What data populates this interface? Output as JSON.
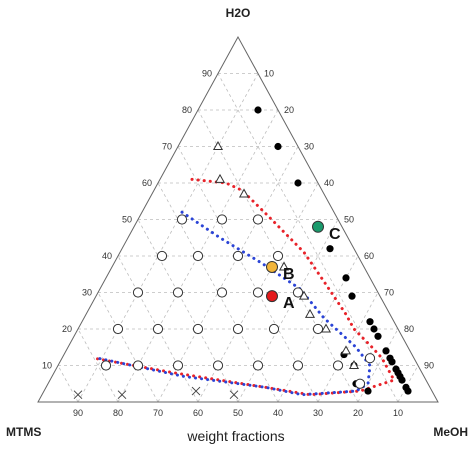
{
  "chart_data": {
    "type": "scatter",
    "subtype": "ternary",
    "axes": {
      "top": "H2O",
      "left": "MTMS",
      "right": "MeOH"
    },
    "xlabel": "weight fractions",
    "ticks": [
      "10",
      "20",
      "30",
      "40",
      "50",
      "60",
      "70",
      "80",
      "90"
    ],
    "grid": true,
    "series": [
      {
        "marker": "filled-circle",
        "points": [
          {
            "H2O": 80,
            "MeOH": 15
          },
          {
            "H2O": 70,
            "MeOH": 25
          },
          {
            "H2O": 60,
            "MeOH": 35
          },
          {
            "H2O": 42,
            "MeOH": 52
          },
          {
            "H2O": 34,
            "MeOH": 60
          },
          {
            "H2O": 29,
            "MeOH": 64
          },
          {
            "H2O": 22,
            "MeOH": 72
          },
          {
            "H2O": 20,
            "MeOH": 74
          },
          {
            "H2O": 18,
            "MeOH": 76
          },
          {
            "H2O": 14,
            "MeOH": 80
          },
          {
            "H2O": 12,
            "MeOH": 82
          },
          {
            "H2O": 11,
            "MeOH": 83
          },
          {
            "H2O": 9,
            "MeOH": 85
          },
          {
            "H2O": 8,
            "MeOH": 86
          },
          {
            "H2O": 7,
            "MeOH": 87
          },
          {
            "H2O": 6,
            "MeOH": 88
          },
          {
            "H2O": 4,
            "MeOH": 90
          },
          {
            "H2O": 3,
            "MeOH": 91
          },
          {
            "H2O": 3,
            "MeOH": 81
          },
          {
            "H2O": 5,
            "MeOH": 77
          },
          {
            "H2O": 10,
            "MeOH": 74
          },
          {
            "H2O": 13,
            "MeOH": 70
          }
        ]
      },
      {
        "marker": "open-triangle",
        "points": [
          {
            "H2O": 70,
            "MeOH": 10
          },
          {
            "H2O": 61,
            "MeOH": 15
          },
          {
            "H2O": 57,
            "MeOH": 23
          },
          {
            "H2O": 37,
            "MeOH": 43
          },
          {
            "H2O": 29,
            "MeOH": 52
          },
          {
            "H2O": 24,
            "MeOH": 56
          },
          {
            "H2O": 20,
            "MeOH": 62
          },
          {
            "H2O": 14,
            "MeOH": 70
          },
          {
            "H2O": 10,
            "MeOH": 74
          }
        ]
      },
      {
        "marker": "open-circle",
        "points": [
          {
            "H2O": 50,
            "MeOH": 11
          },
          {
            "H2O": 50,
            "MeOH": 21
          },
          {
            "H2O": 50,
            "MeOH": 30
          },
          {
            "H2O": 40,
            "MeOH": 11
          },
          {
            "H2O": 40,
            "MeOH": 20
          },
          {
            "H2O": 40,
            "MeOH": 30
          },
          {
            "H2O": 40,
            "MeOH": 40
          },
          {
            "H2O": 30,
            "MeOH": 10
          },
          {
            "H2O": 30,
            "MeOH": 20
          },
          {
            "H2O": 30,
            "MeOH": 31
          },
          {
            "H2O": 30,
            "MeOH": 40
          },
          {
            "H2O": 30,
            "MeOH": 50
          },
          {
            "H2O": 20,
            "MeOH": 10
          },
          {
            "H2O": 20,
            "MeOH": 20
          },
          {
            "H2O": 20,
            "MeOH": 30
          },
          {
            "H2O": 20,
            "MeOH": 40
          },
          {
            "H2O": 20,
            "MeOH": 49
          },
          {
            "H2O": 10,
            "MeOH": 12
          },
          {
            "H2O": 10,
            "MeOH": 20
          },
          {
            "H2O": 10,
            "MeOH": 30
          },
          {
            "H2O": 10,
            "MeOH": 40
          },
          {
            "H2O": 10,
            "MeOH": 50
          },
          {
            "H2O": 10,
            "MeOH": 60
          },
          {
            "H2O": 10,
            "MeOH": 70
          },
          {
            "H2O": 20,
            "MeOH": 60
          },
          {
            "H2O": 12,
            "MeOH": 77
          },
          {
            "H2O": 5,
            "MeOH": 78
          }
        ]
      },
      {
        "marker": "x",
        "points": [
          {
            "H2O": 2,
            "MeOH": 9
          },
          {
            "H2O": 2,
            "MeOH": 20
          },
          {
            "H2O": 2,
            "MeOH": 48
          },
          {
            "H2O": 3,
            "MeOH": 38
          }
        ]
      }
    ],
    "highlighted": [
      {
        "label": "A",
        "color": "#e41a1c",
        "H2O": 29,
        "MeOH": 44
      },
      {
        "label": "B",
        "color": "#f2b53a",
        "H2O": 37,
        "MeOH": 40
      },
      {
        "label": "C",
        "color": "#1a9a6c",
        "H2O": 48,
        "MeOH": 46
      }
    ],
    "curves": [
      {
        "color": "#e8232a",
        "style": "dotted",
        "points": [
          {
            "H2O": 61,
            "MeOH": 8
          },
          {
            "H2O": 60,
            "MeOH": 17
          },
          {
            "H2O": 58,
            "MeOH": 22
          },
          {
            "H2O": 51,
            "MeOH": 32
          },
          {
            "H2O": 41,
            "MeOH": 46
          },
          {
            "H2O": 33,
            "MeOH": 55
          },
          {
            "H2O": 24,
            "MeOH": 65
          },
          {
            "H2O": 20,
            "MeOH": 69
          },
          {
            "H2O": 15,
            "MeOH": 76
          },
          {
            "H2O": 12,
            "MeOH": 80
          },
          {
            "H2O": 6,
            "MeOH": 86
          },
          {
            "H2O": 3,
            "MeOH": 79
          },
          {
            "H2O": 2,
            "MeOH": 67
          },
          {
            "H2O": 4,
            "MeOH": 55
          },
          {
            "H2O": 8,
            "MeOH": 30
          },
          {
            "H2O": 12,
            "MeOH": 8
          }
        ]
      },
      {
        "color": "#2b44d6",
        "style": "dotted",
        "points": [
          {
            "H2O": 52,
            "MeOH": 10
          },
          {
            "H2O": 45,
            "MeOH": 23
          },
          {
            "H2O": 38,
            "MeOH": 37
          },
          {
            "H2O": 31,
            "MeOH": 50
          },
          {
            "H2O": 23,
            "MeOH": 60
          },
          {
            "H2O": 15,
            "MeOH": 72
          },
          {
            "H2O": 10,
            "MeOH": 78
          },
          {
            "H2O": 5,
            "MeOH": 80
          },
          {
            "H2O": 3,
            "MeOH": 78
          },
          {
            "H2O": 2,
            "MeOH": 65
          },
          {
            "H2O": 4,
            "MeOH": 55
          },
          {
            "H2O": 7,
            "MeOH": 33
          },
          {
            "H2O": 12,
            "MeOH": 9
          }
        ]
      }
    ]
  }
}
